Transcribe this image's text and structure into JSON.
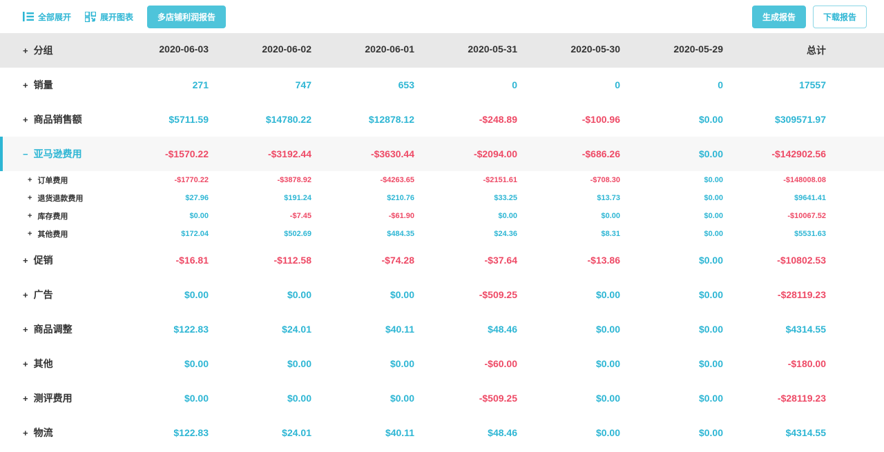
{
  "colors": {
    "accent": "#2eb6d4",
    "button_fill": "#4ec4da",
    "positive_value": "#2eb6d4",
    "negative_value": "#ee4a66",
    "header_bg": "#e8e8e8",
    "expanded_row_bg": "#f7f7f7"
  },
  "toolbar": {
    "expand_all": "全部展开",
    "expand_charts": "展开图表",
    "multi_store_report": "多店铺利润报告",
    "generate_report": "生成报告",
    "download_report": "下载报告"
  },
  "table": {
    "header_toggle": "+",
    "group_header": "分组",
    "columns": [
      "2020-06-03",
      "2020-06-02",
      "2020-06-01",
      "2020-05-31",
      "2020-05-30",
      "2020-05-29",
      "总计"
    ],
    "rows": [
      {
        "type": "main",
        "toggle": "+",
        "label": "销量",
        "values": [
          "271",
          "747",
          "653",
          "0",
          "0",
          "0",
          "17557"
        ]
      },
      {
        "type": "main",
        "toggle": "+",
        "label": "商品销售额",
        "values": [
          "$5711.59",
          "$14780.22",
          "$12878.12",
          "-$248.89",
          "-$100.96",
          "$0.00",
          "$309571.97"
        ]
      },
      {
        "type": "expanded",
        "toggle": "−",
        "label": "亚马逊费用",
        "values": [
          "-$1570.22",
          "-$3192.44",
          "-$3630.44",
          "-$2094.00",
          "-$686.26",
          "$0.00",
          "-$142902.56"
        ]
      },
      {
        "type": "sub",
        "toggle": "+",
        "label": "订单费用",
        "values": [
          "-$1770.22",
          "-$3878.92",
          "-$4263.65",
          "-$2151.61",
          "-$708.30",
          "$0.00",
          "-$148008.08"
        ]
      },
      {
        "type": "sub",
        "toggle": "+",
        "label": "退货退款费用",
        "values": [
          "$27.96",
          "$191.24",
          "$210.76",
          "$33.25",
          "$13.73",
          "$0.00",
          "$9641.41"
        ]
      },
      {
        "type": "sub",
        "toggle": "+",
        "label": "库存费用",
        "values": [
          "$0.00",
          "-$7.45",
          "-$61.90",
          "$0.00",
          "$0.00",
          "$0.00",
          "-$10067.52"
        ]
      },
      {
        "type": "sub",
        "toggle": "+",
        "label": "其他费用",
        "values": [
          "$172.04",
          "$502.69",
          "$484.35",
          "$24.36",
          "$8.31",
          "$0.00",
          "$5531.63"
        ]
      },
      {
        "type": "main",
        "toggle": "+",
        "label": "促销",
        "values": [
          "-$16.81",
          "-$112.58",
          "-$74.28",
          "-$37.64",
          "-$13.86",
          "$0.00",
          "-$10802.53"
        ]
      },
      {
        "type": "main",
        "toggle": "+",
        "label": "广告",
        "values": [
          "$0.00",
          "$0.00",
          "$0.00",
          "-$509.25",
          "$0.00",
          "$0.00",
          "-$28119.23"
        ]
      },
      {
        "type": "main",
        "toggle": "+",
        "label": "商品调整",
        "values": [
          "$122.83",
          "$24.01",
          "$40.11",
          "$48.46",
          "$0.00",
          "$0.00",
          "$4314.55"
        ]
      },
      {
        "type": "main",
        "toggle": "+",
        "label": "其他",
        "values": [
          "$0.00",
          "$0.00",
          "$0.00",
          "-$60.00",
          "$0.00",
          "$0.00",
          "-$180.00"
        ]
      },
      {
        "type": "main",
        "toggle": "+",
        "label": "测评费用",
        "values": [
          "$0.00",
          "$0.00",
          "$0.00",
          "-$509.25",
          "$0.00",
          "$0.00",
          "-$28119.23"
        ]
      },
      {
        "type": "main",
        "toggle": "+",
        "label": "物流",
        "values": [
          "$122.83",
          "$24.01",
          "$40.11",
          "$48.46",
          "$0.00",
          "$0.00",
          "$4314.55"
        ]
      }
    ]
  }
}
